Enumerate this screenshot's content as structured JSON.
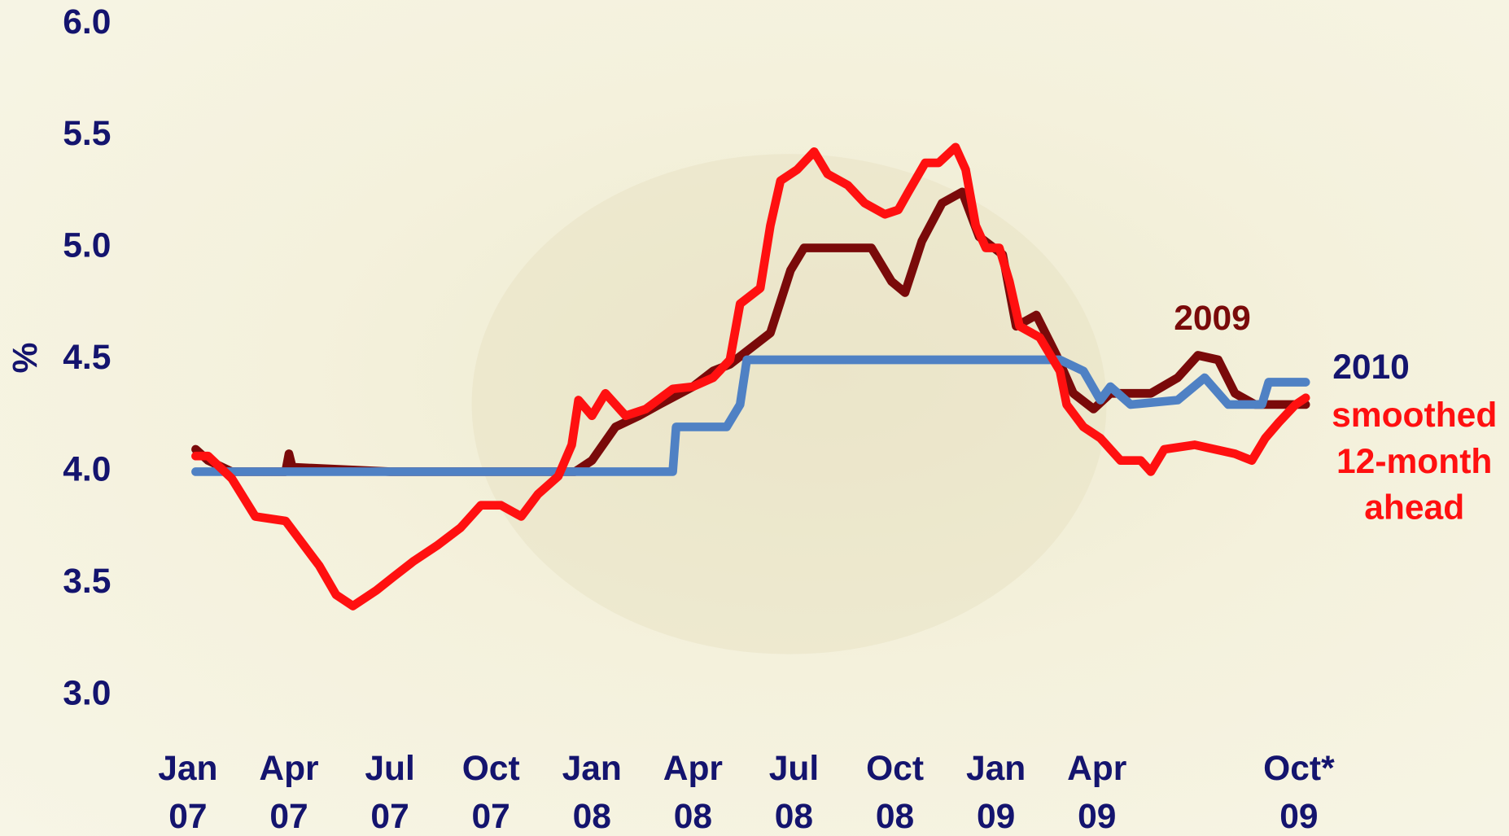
{
  "chart_data": {
    "type": "line",
    "y_label": "%",
    "xlim": [
      -1.5,
      36.5
    ],
    "ylim": [
      3.0,
      6.0
    ],
    "yticks": [
      {
        "value": 3.0,
        "label": "3.0"
      },
      {
        "value": 3.5,
        "label": "3.5"
      },
      {
        "value": 4.0,
        "label": "4.0"
      },
      {
        "value": 4.5,
        "label": "4.5"
      },
      {
        "value": 5.0,
        "label": "5.0"
      },
      {
        "value": 5.5,
        "label": "5.5"
      },
      {
        "value": 6.0,
        "label": "6.0"
      }
    ],
    "xticks": [
      {
        "value": 0,
        "label": [
          "Jan",
          "07"
        ]
      },
      {
        "value": 3,
        "label": [
          "Apr",
          "07"
        ]
      },
      {
        "value": 6,
        "label": [
          "Jul",
          "07"
        ]
      },
      {
        "value": 9,
        "label": [
          "Oct",
          "07"
        ]
      },
      {
        "value": 12,
        "label": [
          "Jan",
          "08"
        ]
      },
      {
        "value": 15,
        "label": [
          "Apr",
          "08"
        ]
      },
      {
        "value": 18,
        "label": [
          "Jul",
          "08"
        ]
      },
      {
        "value": 21,
        "label": [
          "Oct",
          "08"
        ]
      },
      {
        "value": 24,
        "label": [
          "Jan",
          "09"
        ]
      },
      {
        "value": 27,
        "label": [
          "Apr",
          "09"
        ]
      },
      {
        "value": 33,
        "label": [
          "Oct*",
          "09"
        ]
      }
    ],
    "series": [
      {
        "name": [
          "2009"
        ],
        "color": "#7a0a0a",
        "x": [
          0.23,
          0.6,
          1.3,
          2.0,
          2.9,
          3.0,
          3.1,
          6.0,
          9.0,
          11.5,
          12.0,
          12.7,
          13.4,
          14.0,
          15.0,
          15.6,
          16.1,
          16.7,
          17.3,
          17.9,
          18.3,
          19.0,
          20.3,
          20.9,
          21.3,
          21.8,
          22.4,
          23.0,
          23.5,
          24.2,
          24.6,
          25.2,
          25.8,
          26.3,
          26.9,
          27.4,
          28.1,
          28.6,
          29.4,
          30.0,
          30.6,
          31.1,
          31.7,
          32.4,
          33.2
        ],
        "values": [
          4.1,
          4.05,
          4.0,
          4.0,
          4.0,
          4.08,
          4.02,
          4.0,
          4.0,
          4.0,
          4.05,
          4.2,
          4.25,
          4.3,
          4.38,
          4.45,
          4.48,
          4.55,
          4.62,
          4.9,
          5.0,
          5.0,
          5.0,
          4.85,
          4.8,
          5.03,
          5.2,
          5.25,
          5.05,
          4.97,
          4.65,
          4.7,
          4.52,
          4.35,
          4.28,
          4.35,
          4.35,
          4.35,
          4.42,
          4.52,
          4.5,
          4.35,
          4.3,
          4.3,
          4.3
        ]
      },
      {
        "name": [
          "2010"
        ],
        "color": "#4f81c4",
        "x": [
          0.23,
          14.4,
          14.5,
          16.0,
          16.4,
          16.6,
          25.9,
          26.6,
          27.1,
          27.4,
          28.0,
          29.4,
          30.2,
          30.9,
          31.9,
          32.1,
          33.2
        ],
        "values": [
          4.0,
          4.0,
          4.2,
          4.2,
          4.3,
          4.5,
          4.5,
          4.45,
          4.32,
          4.38,
          4.3,
          4.32,
          4.42,
          4.3,
          4.3,
          4.4,
          4.4
        ]
      },
      {
        "name": [
          "smoothed",
          "12-month",
          "ahead"
        ],
        "color": "#ff1010",
        "x": [
          0.23,
          0.6,
          1.3,
          2.0,
          2.9,
          3.3,
          3.9,
          4.4,
          4.9,
          5.6,
          6.1,
          6.7,
          7.4,
          8.1,
          8.7,
          9.3,
          9.9,
          10.4,
          11.0,
          11.4,
          11.6,
          12.0,
          12.4,
          13.0,
          13.6,
          14.4,
          15.0,
          15.6,
          16.1,
          16.4,
          17.0,
          17.3,
          17.6,
          18.1,
          18.6,
          19.0,
          19.6,
          20.1,
          20.7,
          21.1,
          21.4,
          21.9,
          22.3,
          22.8,
          23.1,
          23.4,
          23.7,
          24.1,
          24.4,
          24.7,
          25.3,
          25.9,
          26.1,
          26.6,
          27.1,
          27.7,
          28.3,
          28.6,
          29.0,
          29.9,
          30.5,
          31.1,
          31.6,
          32.0,
          32.4,
          32.9,
          33.2
        ],
        "values": [
          4.07,
          4.07,
          3.97,
          3.8,
          3.78,
          3.7,
          3.58,
          3.45,
          3.4,
          3.47,
          3.53,
          3.6,
          3.67,
          3.75,
          3.85,
          3.85,
          3.8,
          3.9,
          3.98,
          4.12,
          4.32,
          4.25,
          4.35,
          4.25,
          4.28,
          4.37,
          4.38,
          4.42,
          4.5,
          4.75,
          4.82,
          5.1,
          5.3,
          5.35,
          5.43,
          5.33,
          5.28,
          5.2,
          5.15,
          5.17,
          5.25,
          5.38,
          5.38,
          5.45,
          5.35,
          5.1,
          5.0,
          5.0,
          4.85,
          4.65,
          4.6,
          4.45,
          4.3,
          4.2,
          4.15,
          4.05,
          4.05,
          4.0,
          4.1,
          4.12,
          4.1,
          4.08,
          4.05,
          4.15,
          4.22,
          4.3,
          4.33
        ]
      }
    ]
  }
}
